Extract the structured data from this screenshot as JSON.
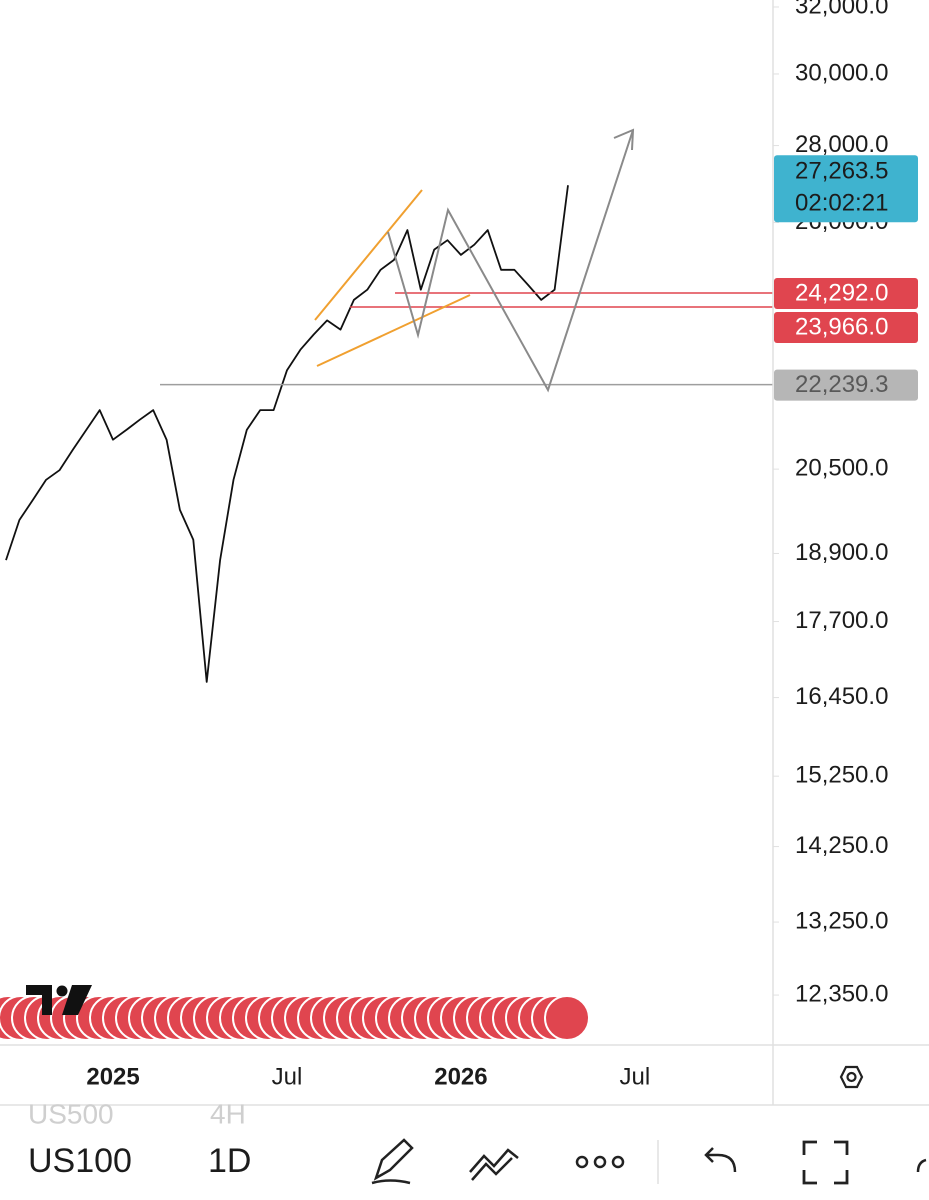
{
  "chart_data": {
    "type": "line",
    "log_scale": true,
    "color": "#111111",
    "categories": [
      null,
      null,
      null,
      null,
      null,
      null,
      null,
      null,
      "2025",
      null,
      null,
      null,
      null,
      null,
      null,
      null,
      null,
      null,
      null,
      null,
      null,
      "Jul",
      null,
      null,
      null,
      null,
      null,
      null,
      null,
      null,
      null,
      null,
      null,
      null,
      "2026",
      null,
      null,
      null,
      null,
      null,
      null,
      null,
      null,
      null,
      null,
      null,
      null,
      "Jul"
    ],
    "values": [
      18780,
      19520,
      19900,
      20290,
      20480,
      20890,
      21290,
      21700,
      21090,
      21290,
      21500,
      21700,
      21090,
      19710,
      19150,
      16700,
      18780,
      20290,
      21290,
      21700,
      21700,
      22550,
      23000,
      23340,
      23660,
      23450,
      24130,
      24370,
      24840,
      25080,
      25810,
      24370,
      25330,
      25560,
      25200,
      25450,
      25810,
      24840,
      24840,
      24490,
      24130,
      24370,
      26950,
      null,
      null,
      null,
      null,
      null
    ],
    "ylim": [
      11770,
      32216
    ],
    "yticks": [
      {
        "value": 32000,
        "label": "32,000.0"
      },
      {
        "value": 30000,
        "label": "30,000.0"
      },
      {
        "value": 28000,
        "label": "28,000.0"
      },
      {
        "value": 26000,
        "label": "26,000.0"
      },
      {
        "value": 20500,
        "label": "20,500.0"
      },
      {
        "value": 18900,
        "label": "18,900.0"
      },
      {
        "value": 17700,
        "label": "17,700.0"
      },
      {
        "value": 16450,
        "label": "16,450.0"
      },
      {
        "value": 15250,
        "label": "15,250.0"
      },
      {
        "value": 14250,
        "label": "14,250.0"
      },
      {
        "value": 13250,
        "label": "13,250.0"
      },
      {
        "value": 12350,
        "label": "12,350.0"
      }
    ],
    "levels": [
      {
        "value": 24292,
        "label": "24,292.0",
        "color": "#e0454f"
      },
      {
        "value": 23966,
        "label": "23,966.0",
        "color": "#e0454f"
      },
      {
        "value": 22239.3,
        "label": "22,239.3",
        "color": "#9e9e9e"
      }
    ],
    "last_price": {
      "value": 27263.5,
      "label": "27,263.5",
      "countdown": "02:02:21",
      "color": "#3fb3cf"
    }
  },
  "toolbar": {
    "faded_symbol": "US500",
    "faded_interval": "4H",
    "symbol": "US100",
    "interval": "1D"
  }
}
